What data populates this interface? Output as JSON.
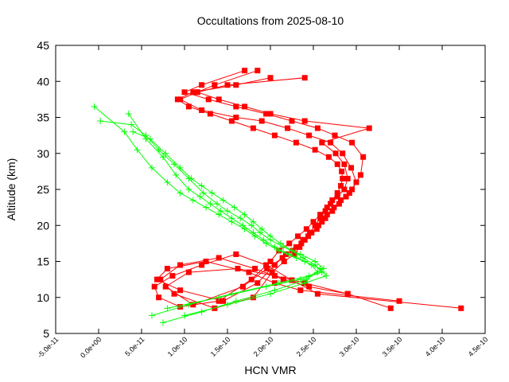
{
  "chart_data": {
    "type": "line",
    "title": "Occultations from 2025-08-10",
    "xlabel": "HCN VMR",
    "ylabel": "Altitude (km)",
    "xlim": [
      -5e-11,
      4.5e-10
    ],
    "ylim": [
      5,
      45
    ],
    "xticks": [
      -5e-11,
      0,
      5e-11,
      1e-10,
      1.5e-10,
      2e-10,
      2.5e-10,
      3e-10,
      3.5e-10,
      4e-10,
      4.5e-10
    ],
    "xtick_labels": [
      "-5.0e-11",
      "0.0e+00",
      "5.0e-11",
      "1.0e-10",
      "1.5e-10",
      "2.0e-10",
      "2.5e-10",
      "3.0e-10",
      "3.5e-10",
      "4.0e-10",
      "4.5e-10"
    ],
    "yticks": [
      5,
      10,
      15,
      20,
      25,
      30,
      35,
      40,
      45
    ],
    "ytick_labels": [
      "5",
      "10",
      "15",
      "20",
      "25",
      "30",
      "35",
      "40",
      "45"
    ],
    "grid": false,
    "series": [
      {
        "color": "#ff0000",
        "marker": "square",
        "profiles": [
          {
            "x": [
              4.22e-10,
              2.55e-10,
              2.25e-10,
              1.95e-10,
              1.6e-10,
              1.2e-10,
              8.6e-11,
              6.5e-11,
              7e-11,
              9.5e-11,
              1.4e-10,
              1.78e-10,
              2e-10,
              2.1e-10,
              2.22e-10,
              2.32e-10,
              2.42e-10,
              2.5e-10,
              2.58e-10,
              2.66e-10,
              2.72e-10,
              2.78e-10,
              2.82e-10,
              2.84e-10,
              2.83e-10,
              2.78e-10,
              2.68e-10,
              2.52e-10,
              2.3e-10,
              2.05e-10,
              1.8e-10,
              1.55e-10,
              1.3e-10,
              1.05e-10,
              9.2e-11,
              1.1e-10,
              1.6e-10,
              2e-10
            ],
            "y": [
              8.5,
              10.5,
              12.4,
              14.5,
              16.0,
              14.5,
              13.0,
              11.5,
              10.0,
              8.7,
              9.5,
              12.5,
              15.0,
              16.5,
              17.5,
              18.5,
              19.5,
              20.5,
              21.5,
              22.5,
              23.5,
              24.5,
              25.5,
              26.5,
              27.5,
              28.5,
              29.5,
              30.5,
              31.5,
              32.5,
              33.5,
              34.5,
              35.5,
              36.5,
              37.5,
              38.5,
              39.5,
              40.5
            ]
          },
          {
            "x": [
              3.5e-10,
              2.35e-10,
              2.05e-10,
              1.75e-10,
              1.25e-10,
              8e-11,
              6.8e-11,
              9.5e-11,
              1.45e-10,
              1.85e-10,
              2.05e-10,
              2.18e-10,
              2.3e-10,
              2.38e-10,
              2.48e-10,
              2.56e-10,
              2.64e-10,
              2.72e-10,
              2.8e-10,
              2.88e-10,
              2.95e-10,
              3.05e-10,
              3.08e-10,
              2.95e-10,
              2.75e-10,
              2.55e-10,
              2.25e-10,
              1.95e-10,
              1.6e-10,
              1.28e-10,
              1e-10,
              1.2e-10,
              1.7e-10
            ],
            "y": [
              9.5,
              11.0,
              12.0,
              13.5,
              15.0,
              14.0,
              12.5,
              11.0,
              9.5,
              12.0,
              14.5,
              16.0,
              17.0,
              18.0,
              19.0,
              20.0,
              21.0,
              22.0,
              23.0,
              24.0,
              25.0,
              27.0,
              29.5,
              31.5,
              32.5,
              33.5,
              34.5,
              35.5,
              36.5,
              37.5,
              38.5,
              39.5,
              41.5
            ]
          },
          {
            "x": [
              3.4e-10,
              2.9e-10,
              2.4e-10,
              2.05e-10,
              1.62e-10,
              1.05e-10,
              7.8e-11,
              1.1e-10,
              1.68e-10,
              1.96e-10,
              2.14e-10,
              2.26e-10,
              2.36e-10,
              2.44e-10,
              2.54e-10,
              2.6e-10,
              2.66e-10,
              2.74e-10,
              2.82e-10,
              2.92e-10,
              3e-10,
              2.94e-10,
              2.84e-10,
              2.7e-10,
              2.45e-10,
              2.2e-10,
              1.9e-10,
              1.6e-10,
              1.2e-10,
              9.5e-11,
              1.15e-10,
              1.5e-10,
              2.4e-10
            ],
            "y": [
              8.5,
              10.5,
              12.0,
              13.0,
              14.0,
              13.5,
              11.5,
              9.0,
              11.5,
              14.0,
              15.5,
              16.5,
              17.5,
              18.5,
              19.5,
              20.5,
              21.5,
              22.5,
              23.5,
              24.5,
              26.0,
              28.0,
              30.0,
              31.5,
              32.5,
              33.5,
              34.5,
              35.0,
              36.0,
              37.5,
              38.5,
              39.5,
              40.5
            ]
          },
          {
            "x": [
              2.9e-10,
              2.45e-10,
              2.15e-10,
              1.82e-10,
              1.4e-10,
              9.5e-11,
              7.2e-11,
              8.8e-11,
              1.35e-10,
              1.8e-10,
              2.02e-10,
              2.16e-10,
              2.28e-10,
              2.34e-10,
              2.4e-10,
              2.46e-10,
              2.52e-10,
              2.58e-10,
              2.64e-10,
              2.7e-10,
              2.78e-10,
              2.86e-10,
              2.9e-10,
              2.86e-10,
              2.76e-10,
              2.6e-10,
              3.15e-10,
              2.4e-10,
              2e-10,
              1.7e-10,
              1.4e-10,
              1.15e-10,
              1.35e-10,
              1.85e-10
            ],
            "y": [
              10.5,
              11.5,
              12.5,
              14.0,
              15.5,
              14.5,
              12.5,
              10.5,
              8.5,
              10.0,
              13.5,
              15.0,
              16.0,
              17.0,
              18.0,
              19.0,
              20.0,
              21.0,
              22.0,
              23.0,
              24.0,
              25.0,
              26.5,
              28.5,
              30.0,
              31.5,
              33.5,
              34.5,
              35.5,
              36.5,
              37.5,
              38.5,
              39.5,
              41.5
            ]
          }
        ]
      },
      {
        "color": "#00ff00",
        "marker": "plus",
        "profiles": [
          {
            "x": [
              7.5e-11,
              1.2e-10,
              1.6e-10,
              2.05e-10,
              2.42e-10,
              2.55e-10,
              2.48e-10,
              2.3e-10,
              2.1e-10,
              1.95e-10,
              1.82e-10,
              1.7e-10,
              1.55e-10,
              1.4e-10,
              1.25e-10,
              1.1e-10,
              9.5e-11,
              8e-11,
              6.2e-11,
              4.5e-11,
              3e-11,
              -5e-12
            ],
            "y": [
              6.5,
              8.0,
              9.5,
              11.0,
              12.5,
              13.5,
              14.5,
              15.5,
              16.5,
              17.5,
              18.5,
              19.5,
              20.5,
              21.5,
              22.5,
              23.5,
              24.5,
              26.0,
              28.0,
              30.5,
              33.0,
              36.5
            ]
          },
          {
            "x": [
              6.2e-11,
              1.05e-10,
              1.55e-10,
              2.1e-10,
              2.45e-10,
              2.62e-10,
              2.52e-10,
              2.35e-10,
              2.15e-10,
              2e-10,
              1.88e-10,
              1.78e-10,
              1.65e-10,
              1.5e-10,
              1.38e-10,
              1.22e-10,
              1.05e-10,
              8.8e-11,
              7e-11,
              5.5e-11,
              3.8e-11,
              2e-12
            ],
            "y": [
              7.5,
              9.0,
              10.5,
              12.0,
              13.0,
              14.0,
              15.0,
              16.0,
              17.0,
              18.0,
              19.0,
              20.0,
              21.0,
              22.0,
              23.0,
              24.5,
              26.5,
              28.5,
              30.5,
              32.5,
              34.0,
              34.5
            ]
          },
          {
            "x": [
              1e-10,
              1.5e-10,
              2e-10,
              2.4e-10,
              2.65e-10,
              2.58e-10,
              2.4e-10,
              2.22e-10,
              2.05e-10,
              1.92e-10,
              1.8e-10,
              1.68e-10,
              1.55e-10,
              1.42e-10,
              1.3e-10,
              1.18e-10,
              1.05e-10,
              9e-11,
              7.5e-11,
              5.5e-11,
              3.5e-11
            ],
            "y": [
              7.5,
              9.0,
              10.5,
              12.0,
              13.0,
              14.0,
              15.0,
              16.0,
              17.0,
              18.0,
              19.0,
              20.0,
              21.0,
              22.0,
              23.0,
              24.0,
              25.0,
              27.0,
              29.5,
              32.0,
              35.5
            ]
          },
          {
            "x": [
              8e-11,
              1.4e-10,
              1.95e-10,
              2.35e-10,
              2.6e-10,
              2.52e-10,
              2.38e-10,
              2.25e-10,
              2.12e-10,
              2e-10,
              1.9e-10,
              1.8e-10,
              1.7e-10,
              1.58e-10,
              1.45e-10,
              1.32e-10,
              1.2e-10,
              1.08e-10,
              9.5e-11,
              7.8e-11,
              6e-11,
              4e-11
            ],
            "y": [
              8.5,
              10.0,
              11.5,
              12.5,
              13.5,
              14.5,
              15.5,
              16.5,
              17.5,
              18.5,
              19.5,
              20.5,
              21.5,
              22.5,
              23.5,
              24.5,
              25.5,
              26.5,
              28.0,
              30.0,
              32.0,
              33.0
            ]
          }
        ]
      }
    ]
  }
}
